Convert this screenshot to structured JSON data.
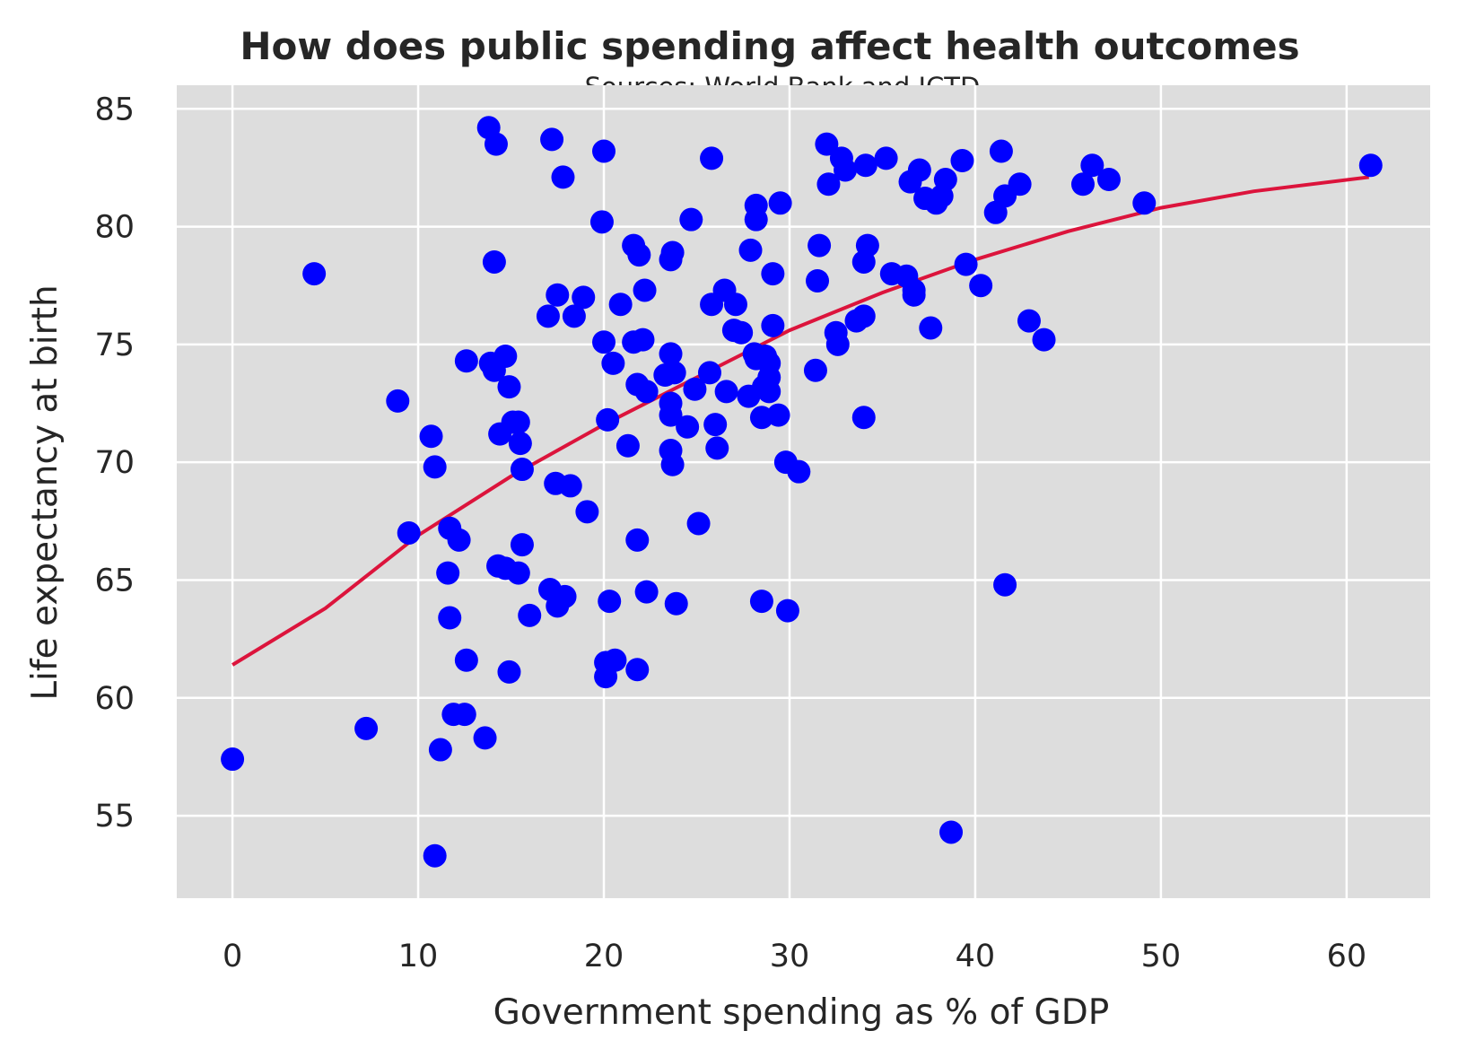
{
  "chart_data": {
    "type": "scatter",
    "title": "How does public spending affect health outcomes",
    "subtitle": "Sources: World Bank and ICTD",
    "xlabel": "Government spending as % of GDP",
    "ylabel": "Life expectancy at birth",
    "xlim": [
      -3,
      64.5
    ],
    "ylim": [
      51.5,
      86
    ],
    "xticks": [
      0,
      10,
      20,
      30,
      40,
      50,
      60
    ],
    "yticks": [
      55,
      60,
      65,
      70,
      75,
      80,
      85
    ],
    "grid": true,
    "background": "#dddddd",
    "point_color": "#0000ff",
    "line_color": "#dc143c",
    "points": [
      [
        0,
        57.4
      ],
      [
        4.4,
        78
      ],
      [
        7.2,
        58.7
      ],
      [
        8.9,
        72.6
      ],
      [
        9.5,
        67
      ],
      [
        10.7,
        71.1
      ],
      [
        10.9,
        69.8
      ],
      [
        10.9,
        53.3
      ],
      [
        11.2,
        57.8
      ],
      [
        11.6,
        65.3
      ],
      [
        11.7,
        67.2
      ],
      [
        11.7,
        63.4
      ],
      [
        11.9,
        59.3
      ],
      [
        12.2,
        66.7
      ],
      [
        12.5,
        59.3
      ],
      [
        12.6,
        74.3
      ],
      [
        12.6,
        61.6
      ],
      [
        13.6,
        58.3
      ],
      [
        13.8,
        84.2
      ],
      [
        13.9,
        74.2
      ],
      [
        14.1,
        73.9
      ],
      [
        14.1,
        78.5
      ],
      [
        14.2,
        83.5
      ],
      [
        14.3,
        65.6
      ],
      [
        14.4,
        71.2
      ],
      [
        14.7,
        65.5
      ],
      [
        14.7,
        74.5
      ],
      [
        14.9,
        61.1
      ],
      [
        14.9,
        73.2
      ],
      [
        15.1,
        71.7
      ],
      [
        15.4,
        71.7
      ],
      [
        15.4,
        65.3
      ],
      [
        15.5,
        70.8
      ],
      [
        15.6,
        69.7
      ],
      [
        15.6,
        66.5
      ],
      [
        16.0,
        63.5
      ],
      [
        17.0,
        76.2
      ],
      [
        17.1,
        64.6
      ],
      [
        17.2,
        83.7
      ],
      [
        17.4,
        69.1
      ],
      [
        17.5,
        77.1
      ],
      [
        17.5,
        63.9
      ],
      [
        17.8,
        82.1
      ],
      [
        17.9,
        64.3
      ],
      [
        18.2,
        69
      ],
      [
        18.4,
        76.2
      ],
      [
        18.9,
        77
      ],
      [
        19.1,
        67.9
      ],
      [
        19.9,
        80.2
      ],
      [
        20.0,
        83.2
      ],
      [
        20.0,
        75.1
      ],
      [
        20.1,
        61.5
      ],
      [
        20.1,
        60.9
      ],
      [
        20.2,
        71.8
      ],
      [
        20.3,
        64.1
      ],
      [
        20.5,
        74.2
      ],
      [
        20.6,
        61.6
      ],
      [
        20.9,
        76.7
      ],
      [
        21.3,
        70.7
      ],
      [
        21.6,
        75.1
      ],
      [
        21.6,
        79.2
      ],
      [
        21.8,
        73.3
      ],
      [
        21.8,
        66.7
      ],
      [
        21.8,
        61.2
      ],
      [
        21.9,
        78.8
      ],
      [
        22.1,
        75.2
      ],
      [
        22.2,
        77.3
      ],
      [
        22.3,
        64.5
      ],
      [
        22.3,
        73
      ],
      [
        23.3,
        73.7
      ],
      [
        23.6,
        74.6
      ],
      [
        23.6,
        70.5
      ],
      [
        23.6,
        72.5
      ],
      [
        23.6,
        72
      ],
      [
        23.6,
        78.6
      ],
      [
        23.7,
        78.9
      ],
      [
        23.7,
        69.9
      ],
      [
        23.8,
        73.8
      ],
      [
        23.9,
        64
      ],
      [
        24.5,
        71.5
      ],
      [
        24.7,
        80.3
      ],
      [
        24.9,
        73.1
      ],
      [
        25.1,
        67.4
      ],
      [
        25.7,
        73.8
      ],
      [
        25.8,
        76.7
      ],
      [
        25.8,
        82.9
      ],
      [
        26.0,
        71.6
      ],
      [
        26.1,
        70.6
      ],
      [
        26.5,
        77.3
      ],
      [
        26.6,
        73
      ],
      [
        27.0,
        75.6
      ],
      [
        27.1,
        76.7
      ],
      [
        27.4,
        75.5
      ],
      [
        27.8,
        72.8
      ],
      [
        27.9,
        79
      ],
      [
        28.1,
        74.6
      ],
      [
        28.2,
        80.9
      ],
      [
        28.2,
        74.4
      ],
      [
        28.2,
        80.3
      ],
      [
        28.5,
        64.1
      ],
      [
        28.5,
        71.9
      ],
      [
        28.6,
        73.2
      ],
      [
        28.7,
        74.5
      ],
      [
        28.9,
        74.2
      ],
      [
        28.9,
        73.6
      ],
      [
        28.9,
        73
      ],
      [
        29.1,
        75.8
      ],
      [
        29.1,
        78
      ],
      [
        29.4,
        72
      ],
      [
        29.5,
        81
      ],
      [
        29.8,
        70
      ],
      [
        29.9,
        63.7
      ],
      [
        30.5,
        69.6
      ],
      [
        31.4,
        73.9
      ],
      [
        31.5,
        77.7
      ],
      [
        31.6,
        79.2
      ],
      [
        32.0,
        83.5
      ],
      [
        32.1,
        81.8
      ],
      [
        32.5,
        75.5
      ],
      [
        32.6,
        75
      ],
      [
        32.8,
        82.9
      ],
      [
        33.0,
        82.4
      ],
      [
        33.6,
        76
      ],
      [
        34.0,
        78.5
      ],
      [
        34.0,
        76.2
      ],
      [
        34.0,
        71.9
      ],
      [
        34.1,
        82.6
      ],
      [
        34.2,
        79.2
      ],
      [
        35.2,
        82.9
      ],
      [
        35.5,
        78
      ],
      [
        36.3,
        77.9
      ],
      [
        36.5,
        81.9
      ],
      [
        36.7,
        77.3
      ],
      [
        36.7,
        77.1
      ],
      [
        37.0,
        82.4
      ],
      [
        37.3,
        81.2
      ],
      [
        37.6,
        75.7
      ],
      [
        37.9,
        81
      ],
      [
        38.2,
        81.3
      ],
      [
        38.4,
        82
      ],
      [
        38.7,
        54.3
      ],
      [
        39.3,
        82.8
      ],
      [
        39.5,
        78.4
      ],
      [
        40.3,
        77.5
      ],
      [
        41.1,
        80.6
      ],
      [
        41.4,
        83.2
      ],
      [
        41.6,
        81.3
      ],
      [
        41.6,
        64.8
      ],
      [
        42.4,
        81.8
      ],
      [
        42.9,
        76
      ],
      [
        43.7,
        75.2
      ],
      [
        45.8,
        81.8
      ],
      [
        46.3,
        82.6
      ],
      [
        47.2,
        82
      ],
      [
        49.1,
        81
      ],
      [
        61.3,
        82.6
      ]
    ],
    "fit_line": [
      [
        0,
        61.4
      ],
      [
        5,
        63.8
      ],
      [
        10,
        66.9
      ],
      [
        15,
        69.4
      ],
      [
        20,
        71.6
      ],
      [
        25,
        73.6
      ],
      [
        30,
        75.6
      ],
      [
        35,
        77.2
      ],
      [
        40,
        78.6
      ],
      [
        45,
        79.8
      ],
      [
        50,
        80.8
      ],
      [
        55,
        81.5
      ],
      [
        61.2,
        82.1
      ]
    ]
  }
}
